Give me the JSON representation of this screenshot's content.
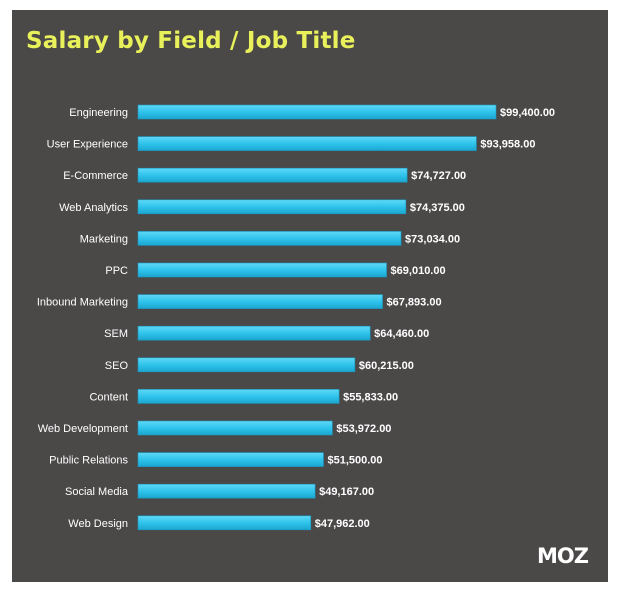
{
  "chart_data": {
    "type": "bar",
    "orientation": "horizontal",
    "title": "Salary by Field / Job Title",
    "xlabel": "",
    "ylabel": "",
    "xlim": [
      0,
      120000
    ],
    "categories": [
      "Engineering",
      "User Experience",
      "E-Commerce",
      "Web Analytics",
      "Marketing",
      "PPC",
      "Inbound Marketing",
      "SEM",
      "SEO",
      "Content",
      "Web Development",
      "Public Relations",
      "Social Media",
      "Web Design"
    ],
    "values": [
      99400,
      93958,
      74727,
      74375,
      73034,
      69010,
      67893,
      64460,
      60215,
      55833,
      53972,
      51500,
      49167,
      47962
    ],
    "value_labels": [
      "$99,400.00",
      "$93,958.00",
      "$74,727.00",
      "$74,375.00",
      "$73,034.00",
      "$69,010.00",
      "$67,893.00",
      "$64,460.00",
      "$60,215.00",
      "$55,833.00",
      "$53,972.00",
      "$51,500.00",
      "$49,167.00",
      "$47,962.00"
    ],
    "grid": false,
    "legend": "none"
  },
  "brand": {
    "logo_text": "MOZ"
  },
  "colors": {
    "background": "#4b4848",
    "title": "#e8f15a",
    "bar": "#2fc4ec",
    "text": "#ffffff"
  }
}
